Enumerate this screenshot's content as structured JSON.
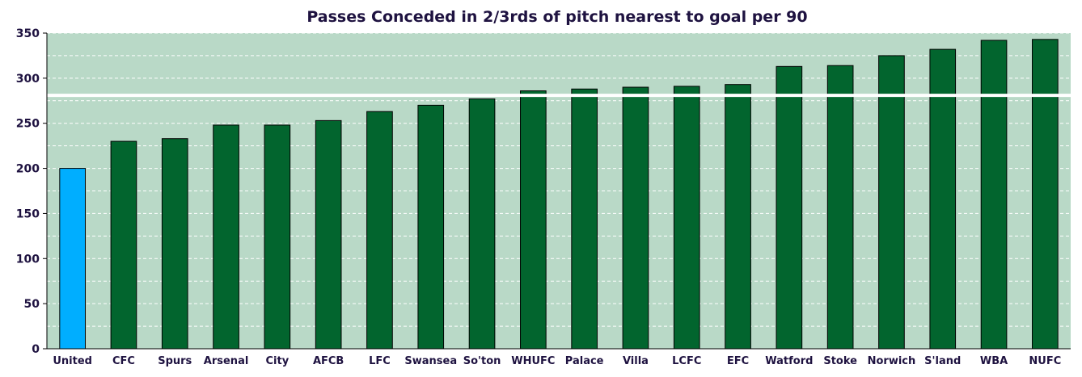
{
  "chart_data": {
    "type": "bar",
    "title": "Passes Conceded in 2/3rds of pitch nearest to goal per 90",
    "xlabel": "",
    "ylabel": "",
    "ylim": [
      0,
      350
    ],
    "yticks": [
      0,
      50,
      100,
      150,
      200,
      250,
      300,
      350
    ],
    "grid": true,
    "categories": [
      "United",
      "CFC",
      "Spurs",
      "Arsenal",
      "City",
      "AFCB",
      "LFC",
      "Swansea",
      "So'ton",
      "WHUFC",
      "Palace",
      "Villa",
      "LCFC",
      "EFC",
      "Watford",
      "Stoke",
      "Norwich",
      "S'land",
      "WBA",
      "NUFC"
    ],
    "values": [
      200,
      230,
      233,
      248,
      248,
      253,
      263,
      270,
      277,
      286,
      288,
      290,
      291,
      293,
      313,
      314,
      325,
      332,
      342,
      343
    ],
    "reference_line": 281,
    "colors": {
      "background": "#b9d9c7",
      "bar": "#02652e",
      "highlight_bar": "#00aeff",
      "highlight_category": "United",
      "reference_line": "#ffffff",
      "grid": "#ffffff",
      "text": "#1e1240"
    }
  }
}
